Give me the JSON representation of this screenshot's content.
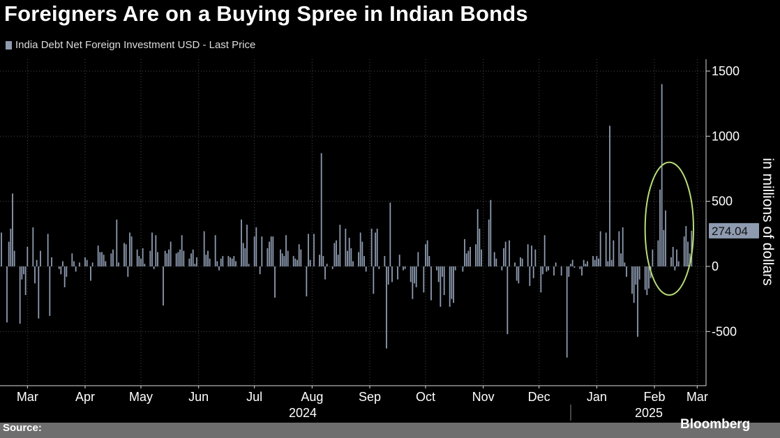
{
  "title": "Foreigners Are on a Buying Spree in Indian Bonds",
  "legend": {
    "label": "India Debt Net Foreign Investment USD - Last Price",
    "color": "#8e9bb0"
  },
  "footer": {
    "source": "Source:",
    "brand": "Bloomberg"
  },
  "chart_data": {
    "type": "bar",
    "title": "Foreigners Are on a Buying Spree in Indian Bonds",
    "ylabel": "in millions of dollars",
    "ylim": [
      -900,
      1650
    ],
    "yticks": [
      1500,
      1000,
      500,
      0,
      -500
    ],
    "last_value_label": "274.04",
    "x_start": "2024-03-01",
    "x_end": "2025-03-14",
    "month_labels": [
      {
        "label": "Mar",
        "date": "2024-03-15"
      },
      {
        "label": "Apr",
        "date": "2024-04-15"
      },
      {
        "label": "May",
        "date": "2024-05-15"
      },
      {
        "label": "Jun",
        "date": "2024-06-15"
      },
      {
        "label": "Jul",
        "date": "2024-07-15"
      },
      {
        "label": "Aug",
        "date": "2024-08-15"
      },
      {
        "label": "Sep",
        "date": "2024-09-15"
      },
      {
        "label": "Oct",
        "date": "2024-10-15"
      },
      {
        "label": "Nov",
        "date": "2024-11-15"
      },
      {
        "label": "Dec",
        "date": "2024-12-15"
      },
      {
        "label": "Jan",
        "date": "2025-01-15"
      },
      {
        "label": "Feb",
        "date": "2025-02-15"
      },
      {
        "label": "Mar",
        "date": "2025-03-10"
      }
    ],
    "year_labels": [
      {
        "label": "2024",
        "date": "2024-08-10"
      },
      {
        "label": "2025",
        "date": "2025-02-12"
      }
    ],
    "year_divider": "2025-01-01",
    "series": [
      {
        "name": "India Debt Net Foreign Investment USD - Last Price",
        "color": "#8e9bb0",
        "points": [
          [
            "2024-03-01",
            260
          ],
          [
            "2024-03-04",
            -430
          ],
          [
            "2024-03-05",
            190
          ],
          [
            "2024-03-06",
            290
          ],
          [
            "2024-03-07",
            560
          ],
          [
            "2024-03-08",
            120
          ],
          [
            "2024-03-11",
            -440
          ],
          [
            "2024-03-12",
            -100
          ],
          [
            "2024-03-13",
            -60
          ],
          [
            "2024-03-14",
            -220
          ],
          [
            "2024-03-15",
            150
          ],
          [
            "2024-03-18",
            300
          ],
          [
            "2024-03-19",
            -130
          ],
          [
            "2024-03-20",
            50
          ],
          [
            "2024-03-21",
            -400
          ],
          [
            "2024-03-22",
            120
          ],
          [
            "2024-03-26",
            250
          ],
          [
            "2024-03-27",
            -380
          ],
          [
            "2024-03-28",
            70
          ],
          [
            "2024-04-01",
            -20
          ],
          [
            "2024-04-02",
            -60
          ],
          [
            "2024-04-03",
            40
          ],
          [
            "2024-04-04",
            -160
          ],
          [
            "2024-04-05",
            -80
          ],
          [
            "2024-04-08",
            100
          ],
          [
            "2024-04-09",
            40
          ],
          [
            "2024-04-10",
            -40
          ],
          [
            "2024-04-12",
            30
          ],
          [
            "2024-04-15",
            70
          ],
          [
            "2024-04-16",
            50
          ],
          [
            "2024-04-18",
            -110
          ],
          [
            "2024-04-19",
            30
          ],
          [
            "2024-04-22",
            160
          ],
          [
            "2024-04-23",
            110
          ],
          [
            "2024-04-24",
            110
          ],
          [
            "2024-04-25",
            90
          ],
          [
            "2024-04-26",
            40
          ],
          [
            "2024-04-29",
            100
          ],
          [
            "2024-04-30",
            130
          ],
          [
            "2024-05-02",
            360
          ],
          [
            "2024-05-03",
            30
          ],
          [
            "2024-05-06",
            180
          ],
          [
            "2024-05-07",
            170
          ],
          [
            "2024-05-08",
            -80
          ],
          [
            "2024-05-09",
            260
          ],
          [
            "2024-05-10",
            230
          ],
          [
            "2024-05-13",
            130
          ],
          [
            "2024-05-14",
            80
          ],
          [
            "2024-05-15",
            60
          ],
          [
            "2024-05-16",
            140
          ],
          [
            "2024-05-17",
            20
          ],
          [
            "2024-05-20",
            120
          ],
          [
            "2024-05-21",
            260
          ],
          [
            "2024-05-22",
            -20
          ],
          [
            "2024-05-23",
            240
          ],
          [
            "2024-05-24",
            110
          ],
          [
            "2024-05-27",
            -300
          ],
          [
            "2024-05-28",
            120
          ],
          [
            "2024-05-29",
            100
          ],
          [
            "2024-05-30",
            130
          ],
          [
            "2024-05-31",
            190
          ],
          [
            "2024-06-03",
            100
          ],
          [
            "2024-06-04",
            110
          ],
          [
            "2024-06-05",
            130
          ],
          [
            "2024-06-06",
            240
          ],
          [
            "2024-06-07",
            120
          ],
          [
            "2024-06-10",
            60
          ],
          [
            "2024-06-11",
            100
          ],
          [
            "2024-06-12",
            130
          ],
          [
            "2024-06-13",
            20
          ],
          [
            "2024-06-14",
            70
          ],
          [
            "2024-06-18",
            270
          ],
          [
            "2024-06-19",
            90
          ],
          [
            "2024-06-20",
            120
          ],
          [
            "2024-06-21",
            60
          ],
          [
            "2024-06-24",
            240
          ],
          [
            "2024-06-25",
            40
          ],
          [
            "2024-06-26",
            -30
          ],
          [
            "2024-06-27",
            60
          ],
          [
            "2024-06-28",
            80
          ],
          [
            "2024-07-01",
            80
          ],
          [
            "2024-07-02",
            70
          ],
          [
            "2024-07-03",
            60
          ],
          [
            "2024-07-04",
            80
          ],
          [
            "2024-07-05",
            40
          ],
          [
            "2024-07-08",
            360
          ],
          [
            "2024-07-09",
            180
          ],
          [
            "2024-07-10",
            140
          ],
          [
            "2024-07-11",
            320
          ],
          [
            "2024-07-12",
            20
          ],
          [
            "2024-07-15",
            230
          ],
          [
            "2024-07-16",
            300
          ],
          [
            "2024-07-18",
            -60
          ],
          [
            "2024-07-19",
            230
          ],
          [
            "2024-07-22",
            140
          ],
          [
            "2024-07-23",
            190
          ],
          [
            "2024-07-24",
            230
          ],
          [
            "2024-07-25",
            230
          ],
          [
            "2024-07-26",
            -240
          ],
          [
            "2024-07-29",
            130
          ],
          [
            "2024-07-30",
            100
          ],
          [
            "2024-07-31",
            80
          ],
          [
            "2024-08-01",
            240
          ],
          [
            "2024-08-02",
            120
          ],
          [
            "2024-08-05",
            80
          ],
          [
            "2024-08-06",
            60
          ],
          [
            "2024-08-07",
            50
          ],
          [
            "2024-08-08",
            170
          ],
          [
            "2024-08-09",
            130
          ],
          [
            "2024-08-12",
            -230
          ],
          [
            "2024-08-13",
            250
          ],
          [
            "2024-08-14",
            50
          ],
          [
            "2024-08-16",
            250
          ],
          [
            "2024-08-19",
            90
          ],
          [
            "2024-08-20",
            870
          ],
          [
            "2024-08-21",
            80
          ],
          [
            "2024-08-22",
            -100
          ],
          [
            "2024-08-23",
            20
          ],
          [
            "2024-08-26",
            -20
          ],
          [
            "2024-08-27",
            180
          ],
          [
            "2024-08-28",
            200
          ],
          [
            "2024-08-29",
            90
          ],
          [
            "2024-08-30",
            320
          ],
          [
            "2024-09-02",
            290
          ],
          [
            "2024-09-03",
            120
          ],
          [
            "2024-09-04",
            220
          ],
          [
            "2024-09-05",
            140
          ],
          [
            "2024-09-06",
            40
          ],
          [
            "2024-09-09",
            110
          ],
          [
            "2024-09-10",
            260
          ],
          [
            "2024-09-11",
            190
          ],
          [
            "2024-09-12",
            80
          ],
          [
            "2024-09-13",
            -40
          ],
          [
            "2024-09-16",
            290
          ],
          [
            "2024-09-17",
            -210
          ],
          [
            "2024-09-18",
            260
          ],
          [
            "2024-09-19",
            290
          ],
          [
            "2024-09-20",
            -20
          ],
          [
            "2024-09-23",
            80
          ],
          [
            "2024-09-24",
            -630
          ],
          [
            "2024-09-25",
            -140
          ],
          [
            "2024-09-26",
            490
          ],
          [
            "2024-09-27",
            -120
          ],
          [
            "2024-09-30",
            -100
          ],
          [
            "2024-10-01",
            90
          ],
          [
            "2024-10-03",
            -30
          ],
          [
            "2024-10-04",
            -20
          ],
          [
            "2024-10-07",
            -120
          ],
          [
            "2024-10-08",
            -250
          ],
          [
            "2024-10-09",
            -130
          ],
          [
            "2024-10-10",
            -160
          ],
          [
            "2024-10-11",
            110
          ],
          [
            "2024-10-14",
            -200
          ],
          [
            "2024-10-15",
            170
          ],
          [
            "2024-10-16",
            200
          ],
          [
            "2024-10-17",
            80
          ],
          [
            "2024-10-18",
            -260
          ],
          [
            "2024-10-21",
            -30
          ],
          [
            "2024-10-22",
            -120
          ],
          [
            "2024-10-23",
            -310
          ],
          [
            "2024-10-24",
            -80
          ],
          [
            "2024-10-25",
            -220
          ],
          [
            "2024-10-28",
            -310
          ],
          [
            "2024-10-29",
            -250
          ],
          [
            "2024-10-30",
            -280
          ],
          [
            "2024-10-31",
            -30
          ],
          [
            "2024-11-04",
            -40
          ],
          [
            "2024-11-05",
            210
          ],
          [
            "2024-11-06",
            100
          ],
          [
            "2024-11-07",
            120
          ],
          [
            "2024-11-08",
            150
          ],
          [
            "2024-11-11",
            170
          ],
          [
            "2024-11-12",
            440
          ],
          [
            "2024-11-13",
            290
          ],
          [
            "2024-11-14",
            130
          ],
          [
            "2024-11-18",
            360
          ],
          [
            "2024-11-19",
            510
          ],
          [
            "2024-11-21",
            110
          ],
          [
            "2024-11-22",
            60
          ],
          [
            "2024-11-25",
            -30
          ],
          [
            "2024-11-26",
            140
          ],
          [
            "2024-11-27",
            190
          ],
          [
            "2024-11-28",
            -520
          ],
          [
            "2024-11-29",
            200
          ],
          [
            "2024-12-02",
            30
          ],
          [
            "2024-12-03",
            -110
          ],
          [
            "2024-12-04",
            -130
          ],
          [
            "2024-12-05",
            70
          ],
          [
            "2024-12-06",
            60
          ],
          [
            "2024-12-09",
            170
          ],
          [
            "2024-12-10",
            -150
          ],
          [
            "2024-12-11",
            160
          ],
          [
            "2024-12-12",
            -90
          ],
          [
            "2024-12-13",
            130
          ],
          [
            "2024-12-16",
            -200
          ],
          [
            "2024-12-17",
            -60
          ],
          [
            "2024-12-18",
            240
          ],
          [
            "2024-12-19",
            -40
          ],
          [
            "2024-12-20",
            -30
          ],
          [
            "2024-12-23",
            -70
          ],
          [
            "2024-12-24",
            30
          ],
          [
            "2024-12-27",
            -70
          ],
          [
            "2024-12-30",
            -700
          ],
          [
            "2024-12-31",
            -80
          ],
          [
            "2025-01-01",
            20
          ],
          [
            "2025-01-02",
            50
          ],
          [
            "2025-01-03",
            -10
          ],
          [
            "2025-01-06",
            -20
          ],
          [
            "2025-01-07",
            -70
          ],
          [
            "2025-01-08",
            50
          ],
          [
            "2025-01-09",
            20
          ],
          [
            "2025-01-10",
            40
          ],
          [
            "2025-01-13",
            80
          ],
          [
            "2025-01-14",
            50
          ],
          [
            "2025-01-15",
            80
          ],
          [
            "2025-01-16",
            60
          ],
          [
            "2025-01-17",
            270
          ],
          [
            "2025-01-20",
            260
          ],
          [
            "2025-01-21",
            40
          ],
          [
            "2025-01-22",
            1080
          ],
          [
            "2025-01-23",
            50
          ],
          [
            "2025-01-24",
            200
          ],
          [
            "2025-01-27",
            270
          ],
          [
            "2025-01-28",
            100
          ],
          [
            "2025-01-29",
            300
          ],
          [
            "2025-01-30",
            30
          ],
          [
            "2025-01-31",
            -80
          ],
          [
            "2025-02-03",
            -210
          ],
          [
            "2025-02-04",
            -280
          ],
          [
            "2025-02-05",
            -140
          ],
          [
            "2025-02-06",
            -540
          ],
          [
            "2025-02-07",
            -100
          ],
          [
            "2025-02-10",
            -180
          ],
          [
            "2025-02-11",
            -220
          ],
          [
            "2025-02-12",
            -170
          ],
          [
            "2025-02-13",
            -90
          ],
          [
            "2025-02-14",
            130
          ],
          [
            "2025-02-17",
            200
          ],
          [
            "2025-02-18",
            590
          ],
          [
            "2025-02-19",
            1400
          ],
          [
            "2025-02-20",
            280
          ],
          [
            "2025-02-21",
            430
          ],
          [
            "2025-02-24",
            70
          ],
          [
            "2025-02-25",
            150
          ],
          [
            "2025-02-26",
            -30
          ],
          [
            "2025-02-27",
            130
          ],
          [
            "2025-02-28",
            40
          ],
          [
            "2025-03-03",
            230
          ],
          [
            "2025-03-04",
            310
          ],
          [
            "2025-03-05",
            190
          ],
          [
            "2025-03-06",
            100
          ],
          [
            "2025-03-07",
            274.04
          ]
        ]
      }
    ],
    "annotations": [
      {
        "type": "ellipse",
        "color": "#b8dc78",
        "x_range": [
          "2025-02-10",
          "2025-03-08"
        ],
        "y_range": [
          -220,
          800
        ]
      }
    ]
  }
}
